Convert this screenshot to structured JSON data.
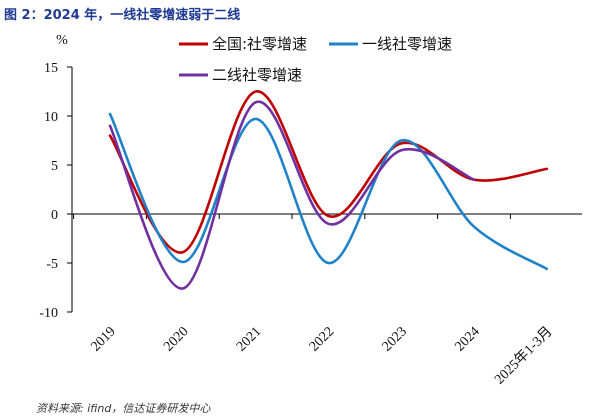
{
  "title": "图 2：2024 年，一线社零增速弱于二线",
  "source": "资料来源: ifind，信达证券研发中心",
  "chart_data": {
    "type": "line",
    "ylabel": "%",
    "ylim": [
      -10,
      15
    ],
    "yticks": [
      15,
      10,
      5,
      0,
      -5,
      -10
    ],
    "ytick_labels": [
      "15",
      "10",
      "5",
      "0",
      "-5",
      "-10"
    ],
    "categories": [
      "2019",
      "2020",
      "2021",
      "2022",
      "2023",
      "2024",
      "2025年1-3月"
    ],
    "grid": false,
    "legend_position": "top",
    "series": [
      {
        "name": "全国:社零增速",
        "color": "#c00000",
        "values": [
          8.0,
          -3.9,
          12.5,
          -0.2,
          7.2,
          3.5,
          4.6
        ]
      },
      {
        "name": "一线社零增速",
        "color": "#1f82c9",
        "values": [
          10.2,
          -4.9,
          9.7,
          -5.0,
          7.5,
          -1.3,
          -5.6
        ]
      },
      {
        "name": "二线社零增速",
        "color": "#7030a0",
        "values": [
          9.0,
          -7.6,
          11.4,
          -1.0,
          6.5,
          3.5,
          null
        ]
      }
    ]
  }
}
